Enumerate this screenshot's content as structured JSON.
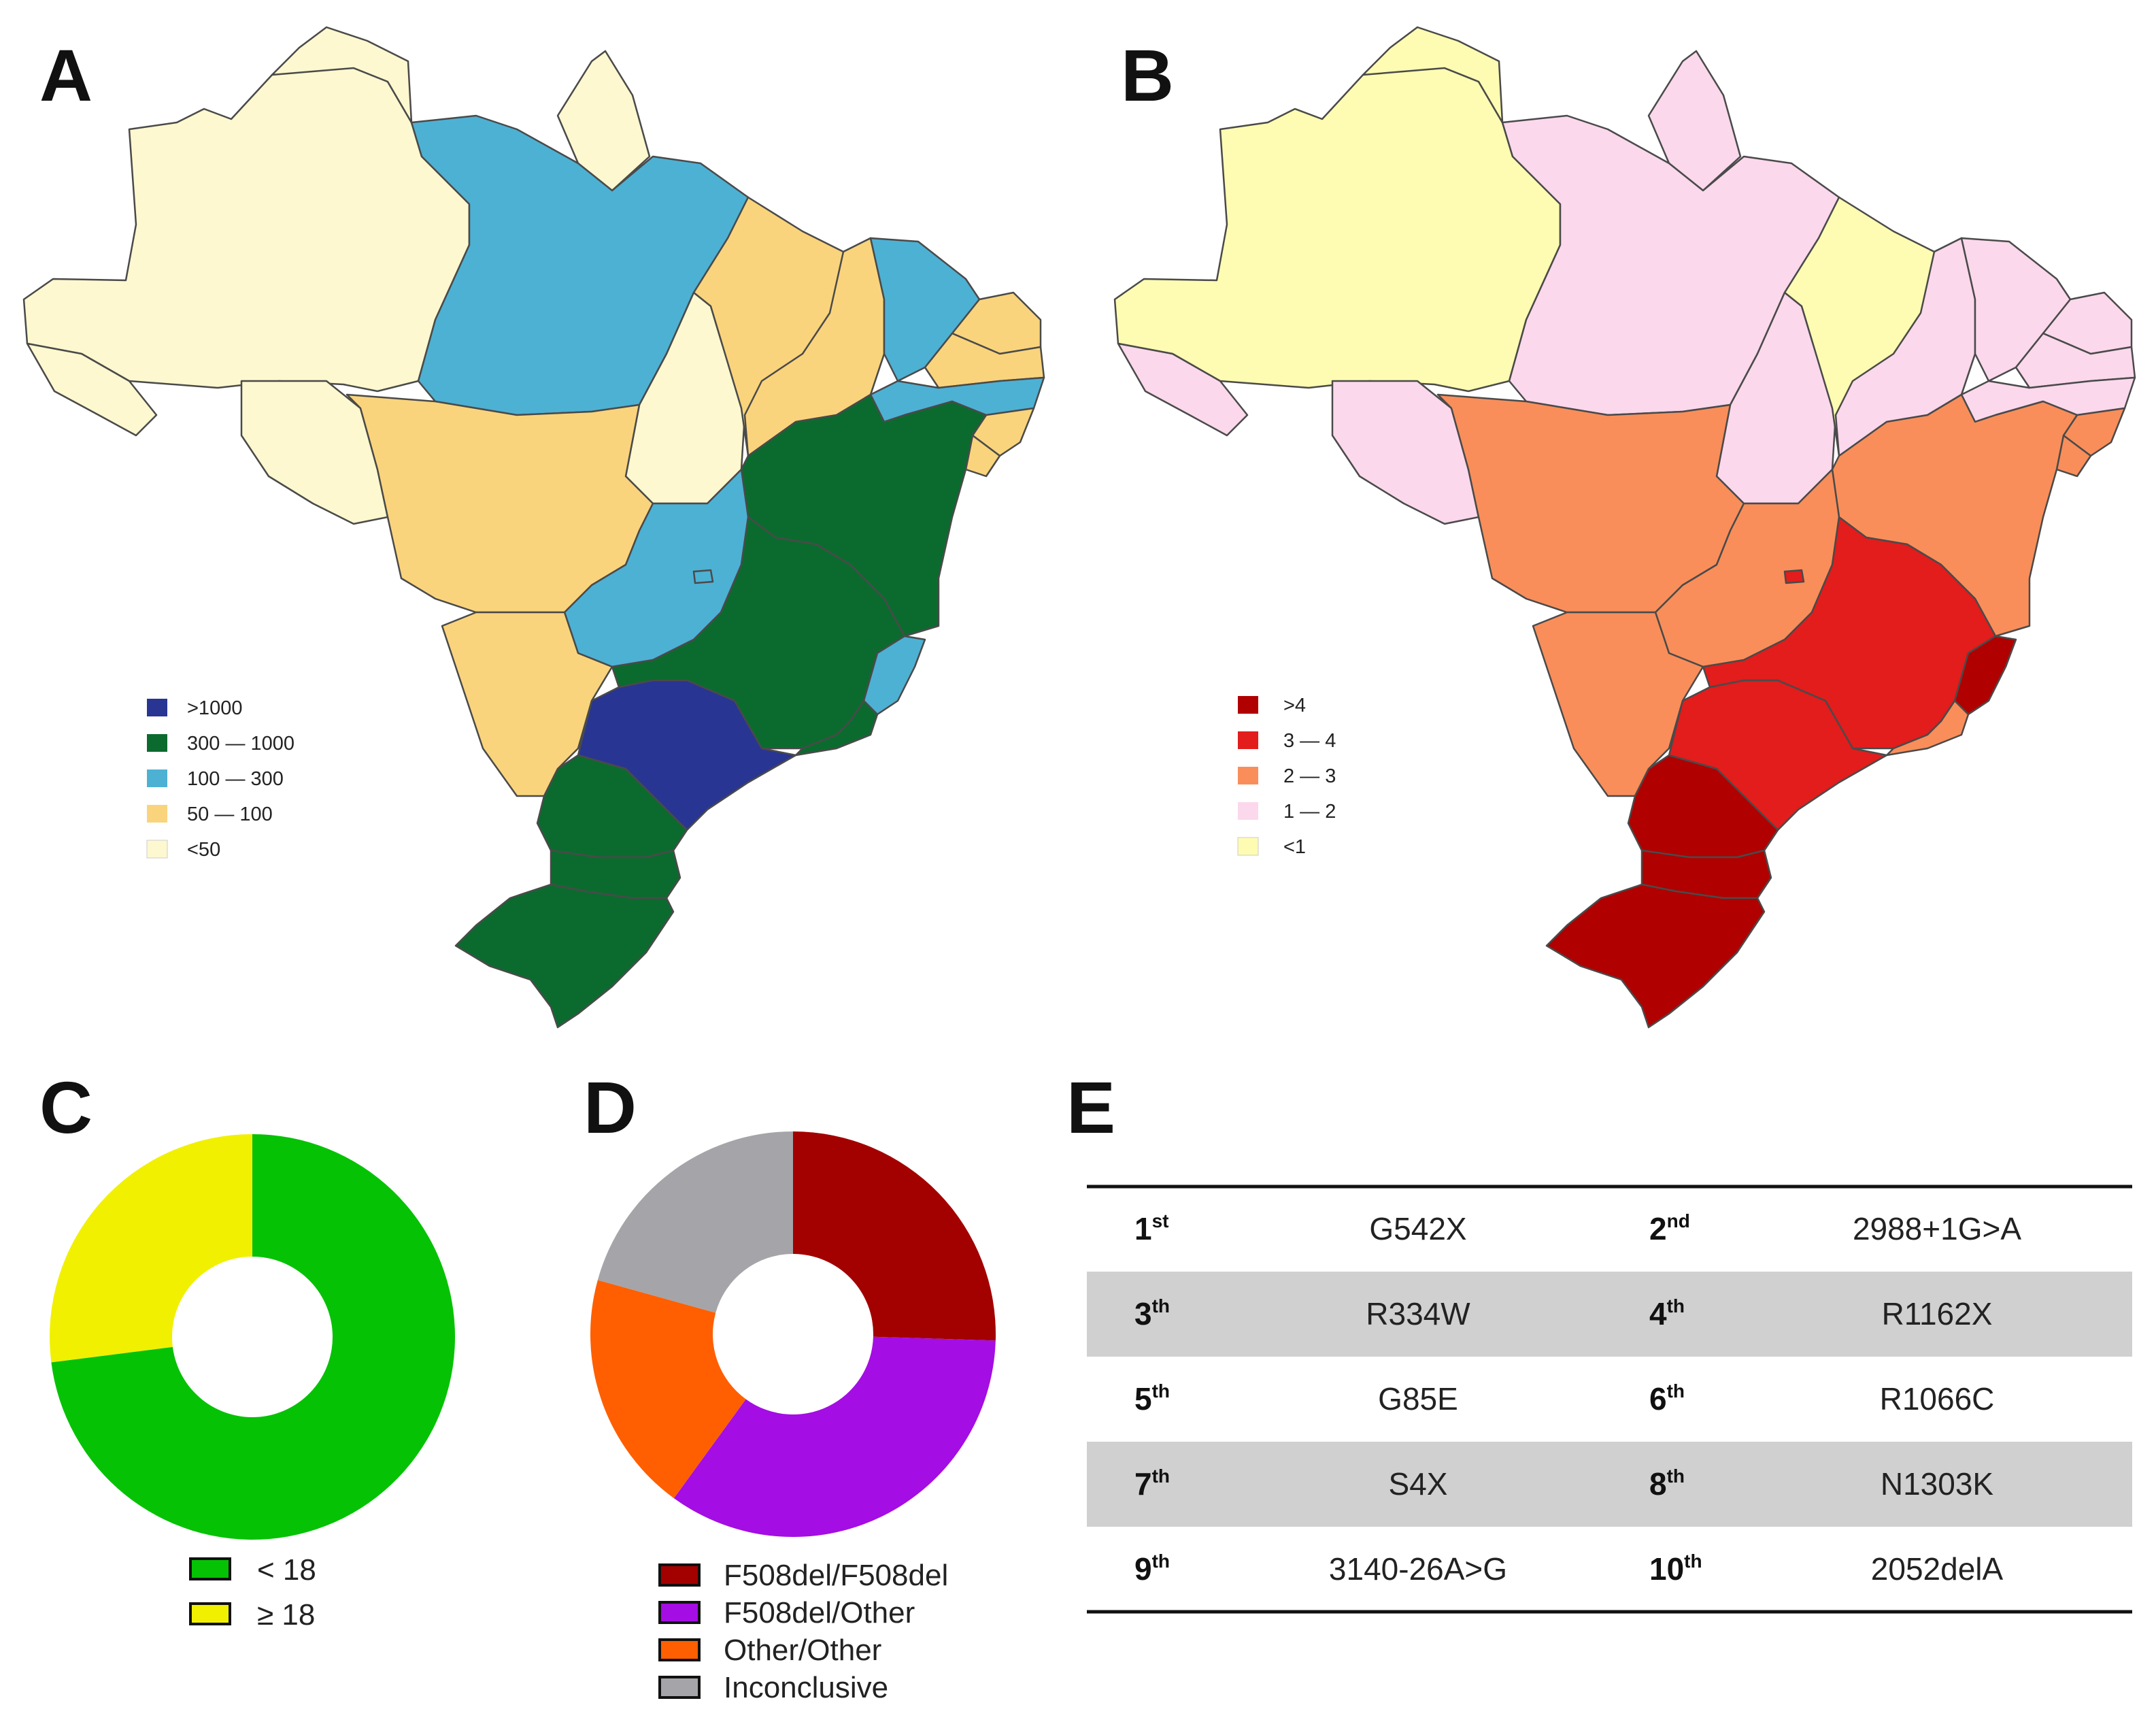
{
  "panels": {
    "a": "A",
    "b": "B",
    "c": "C",
    "d": "D",
    "e": "E"
  },
  "chart_data": [
    {
      "type": "map",
      "panel": "A",
      "title": "",
      "legend": [
        {
          "label": ">1000",
          "color": "#283593"
        },
        {
          "label": "300 — 1000",
          "color": "#0b6b2e"
        },
        {
          "label": "100 — 300",
          "color": "#4db1d4"
        },
        {
          "label": "50 — 100",
          "color": "#fad47c"
        },
        {
          "label": "<50",
          "color": "#fdf8cf"
        }
      ]
    },
    {
      "type": "map",
      "panel": "B",
      "title": "",
      "legend": [
        {
          "label": ">4",
          "color": "#b00000"
        },
        {
          "label": "3 — 4",
          "color": "#e31c1c"
        },
        {
          "label": "2 — 3",
          "color": "#f98e5a"
        },
        {
          "label": "1 — 2",
          "color": "#fbd8ec"
        },
        {
          "label": "<1",
          "color": "#fdfcb2"
        }
      ]
    },
    {
      "type": "pie",
      "panel": "C",
      "labels": [
        "< 18",
        "≥ 18"
      ],
      "values": [
        73,
        27
      ],
      "colors": [
        "#05c205",
        "#f0f000"
      ]
    },
    {
      "type": "pie",
      "panel": "D",
      "labels": [
        "F508del/F508del",
        "F508del/Other",
        "Other/Other",
        "Inconclusive"
      ],
      "values": [
        25.5,
        34.5,
        19.3,
        20.7
      ],
      "colors": [
        "#a30000",
        "#a40de3",
        "#ff5f00",
        "#a5a4a8"
      ]
    },
    {
      "type": "table",
      "panel": "E",
      "rows": [
        [
          {
            "n": "1",
            "suf": "st",
            "mut": "G542X"
          },
          {
            "n": "2",
            "suf": "nd",
            "mut": "2988+1G>A"
          }
        ],
        [
          {
            "n": "3",
            "suf": "th",
            "mut": "R334W"
          },
          {
            "n": "4",
            "suf": "th",
            "mut": "R1162X"
          }
        ],
        [
          {
            "n": "5",
            "suf": "th",
            "mut": "G85E"
          },
          {
            "n": "6",
            "suf": "th",
            "mut": "R1066C"
          }
        ],
        [
          {
            "n": "7",
            "suf": "th",
            "mut": "S4X"
          },
          {
            "n": "8",
            "suf": "th",
            "mut": "N1303K"
          }
        ],
        [
          {
            "n": "9",
            "suf": "th",
            "mut": "3140-26A>G"
          },
          {
            "n": "10",
            "suf": "th",
            "mut": "2052delA"
          }
        ]
      ]
    }
  ]
}
